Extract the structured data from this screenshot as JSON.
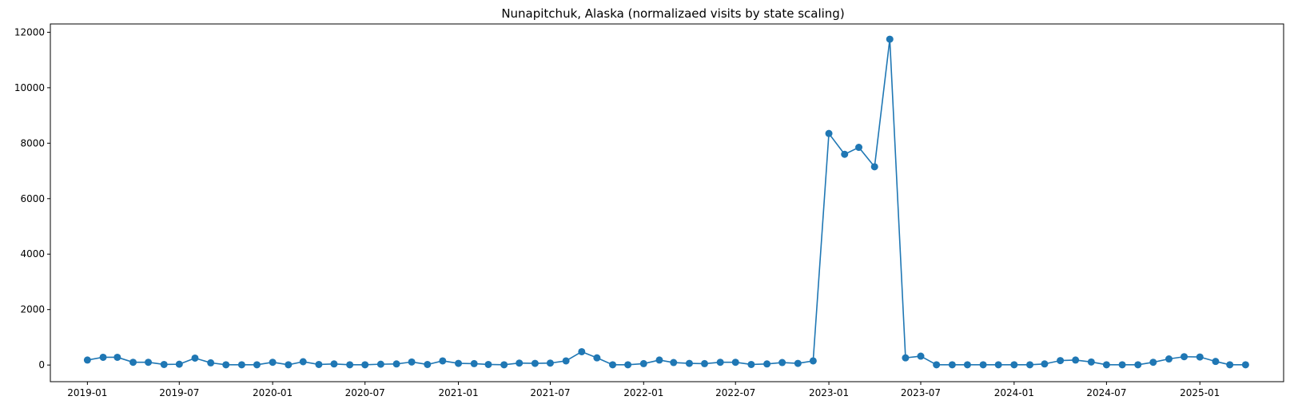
{
  "chart_data": {
    "type": "line",
    "title": "Nunapitchuk, Alaska (normalizaed visits by state scaling)",
    "xlabel": "",
    "ylabel": "",
    "x_ticks": [
      "2019-01",
      "2019-07",
      "2020-01",
      "2020-07",
      "2021-01",
      "2021-07",
      "2022-01",
      "2022-07",
      "2023-01",
      "2023-07",
      "2024-01",
      "2024-07",
      "2025-01"
    ],
    "y_ticks": [
      0,
      2000,
      4000,
      6000,
      8000,
      10000,
      12000
    ],
    "ylim": [
      -600,
      12300
    ],
    "xlim": [
      "2018-10-20",
      "2025-06-15"
    ],
    "grid": false,
    "marker": "circle",
    "color": "#1f77b4",
    "series": [
      {
        "x": [
          "2019-01",
          "2019-02",
          "2019-03",
          "2019-04",
          "2019-05",
          "2019-06",
          "2019-07",
          "2019-08",
          "2019-09",
          "2019-10",
          "2019-11",
          "2019-12",
          "2020-01",
          "2020-02",
          "2020-03",
          "2020-04",
          "2020-05",
          "2020-06",
          "2020-07",
          "2020-08",
          "2020-09",
          "2020-10",
          "2020-11",
          "2020-12",
          "2021-01",
          "2021-02",
          "2021-03",
          "2021-04",
          "2021-05",
          "2021-06",
          "2021-07",
          "2021-08",
          "2021-09",
          "2021-10",
          "2021-11",
          "2021-12",
          "2022-01",
          "2022-02",
          "2022-03",
          "2022-04",
          "2022-05",
          "2022-06",
          "2022-07",
          "2022-08",
          "2022-09",
          "2022-10",
          "2022-11",
          "2022-12",
          "2023-01",
          "2023-02",
          "2023-03",
          "2023-04",
          "2023-05",
          "2023-06",
          "2023-07",
          "2023-08",
          "2023-09",
          "2023-10",
          "2023-11",
          "2023-12",
          "2024-01",
          "2024-02",
          "2024-03",
          "2024-04",
          "2024-05",
          "2024-06",
          "2024-07",
          "2024-08",
          "2024-09",
          "2024-10",
          "2024-11",
          "2024-12",
          "2025-01",
          "2025-02",
          "2025-03",
          "2025-04"
        ],
        "values": [
          180,
          280,
          280,
          100,
          100,
          20,
          30,
          250,
          80,
          10,
          10,
          10,
          100,
          10,
          120,
          20,
          40,
          10,
          10,
          30,
          40,
          110,
          20,
          150,
          60,
          50,
          20,
          10,
          70,
          60,
          70,
          150,
          480,
          260,
          10,
          10,
          50,
          180,
          90,
          60,
          50,
          100,
          100,
          20,
          40,
          90,
          60,
          150,
          8350,
          7600,
          7850,
          7150,
          11750,
          260,
          320,
          10,
          10,
          10,
          10,
          10,
          10,
          10,
          40,
          160,
          180,
          110,
          10,
          10,
          10,
          100,
          220,
          300,
          290,
          130,
          10,
          10
        ]
      }
    ]
  }
}
